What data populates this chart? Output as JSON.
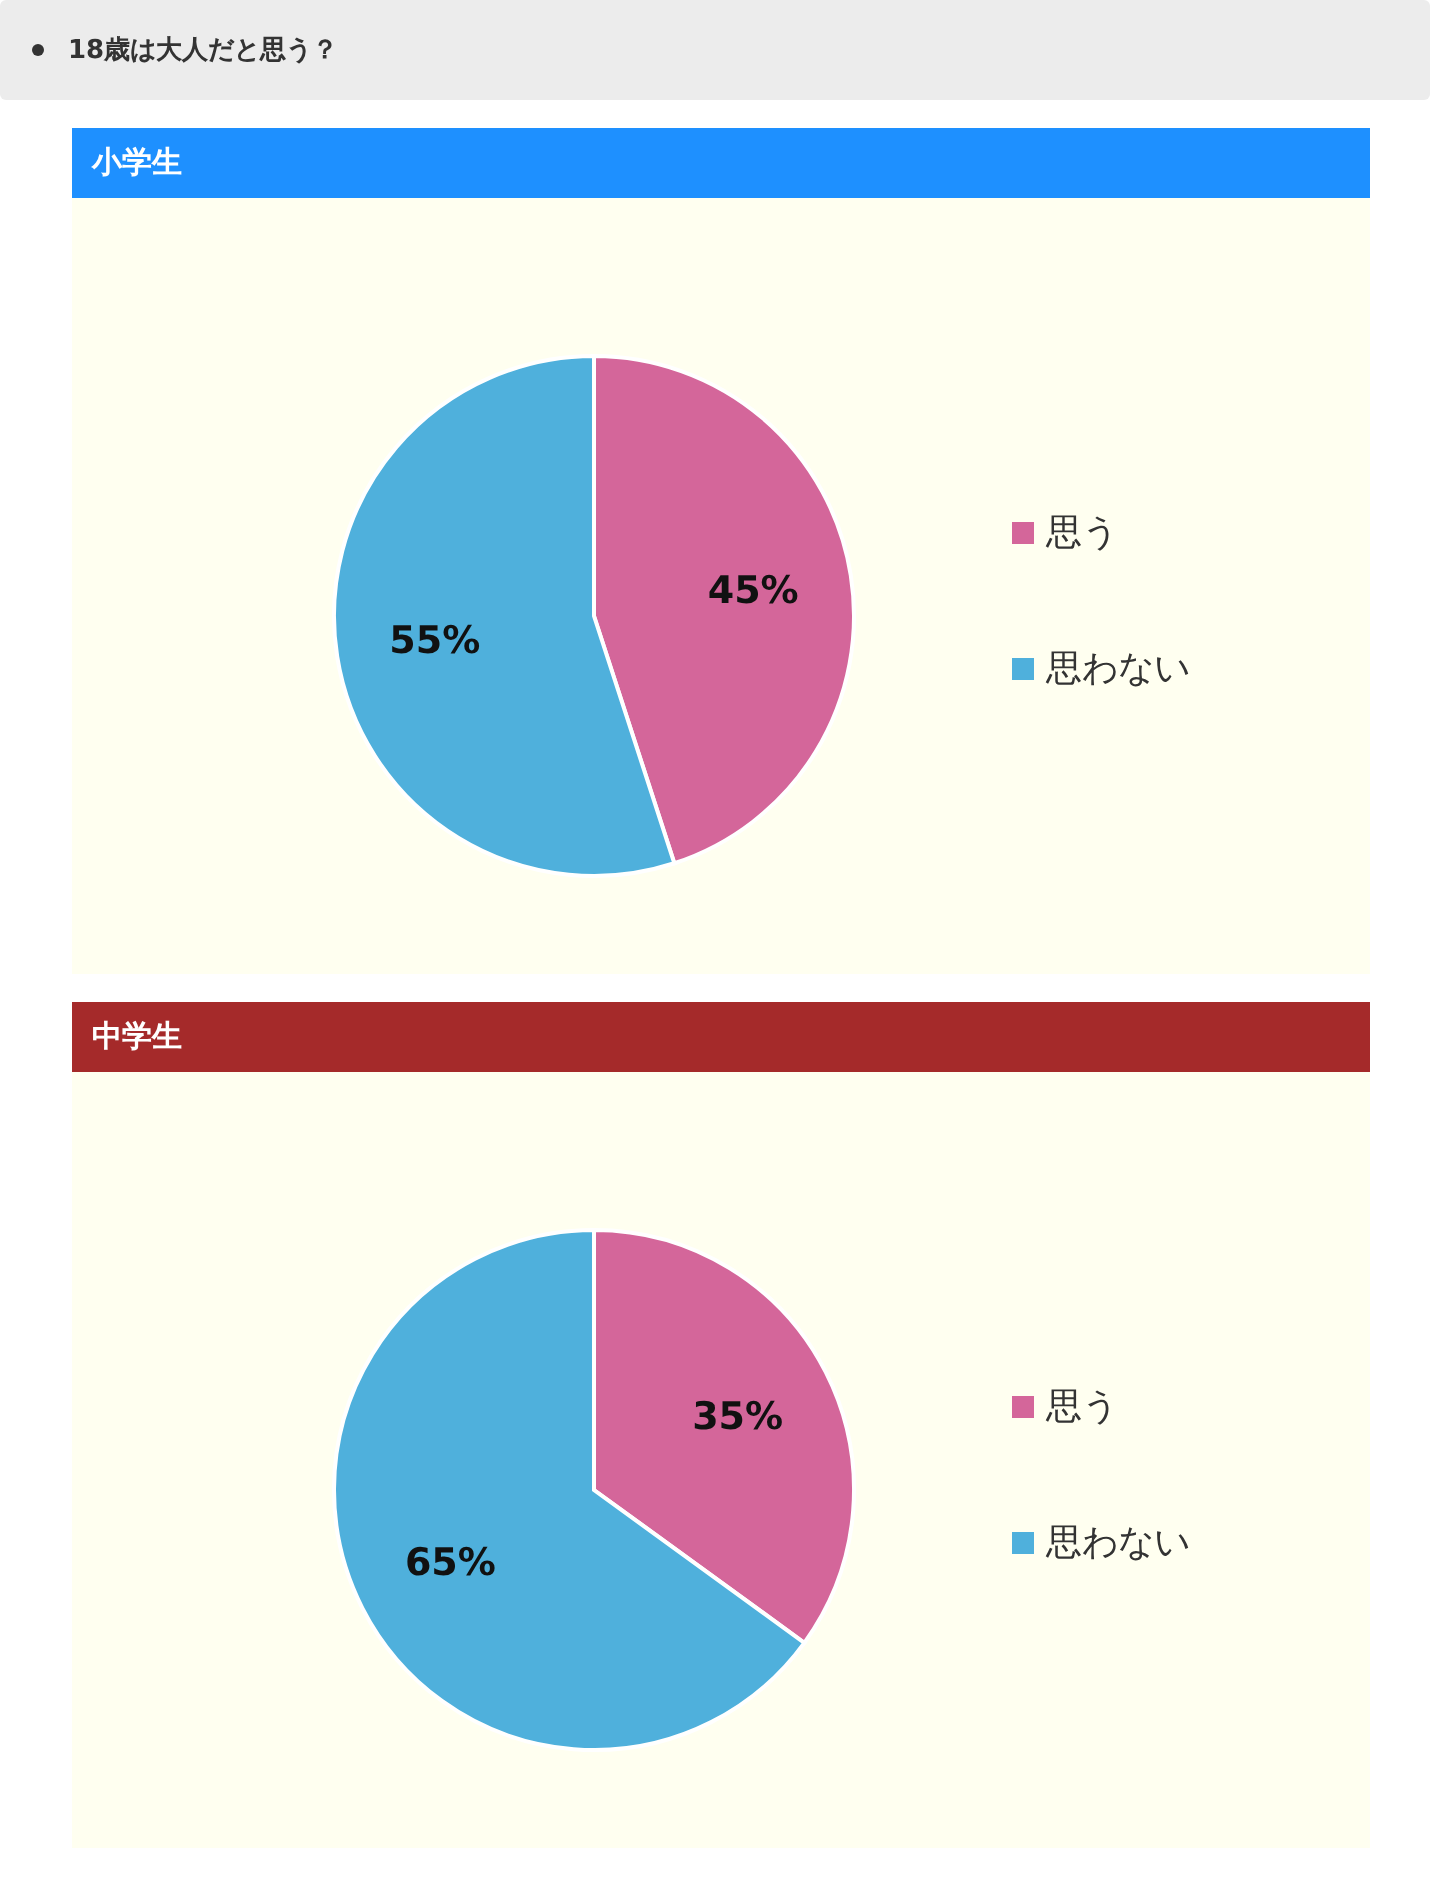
{
  "chart_data": [
    {
      "type": "pie",
      "title": "小学生",
      "annotations": [
        "18歳は大人だと思う？"
      ],
      "categories": [
        "思う",
        "思わない"
      ],
      "values": [
        45,
        55
      ],
      "colors": [
        "#d4669a",
        "#4fb0dc"
      ],
      "value_labels": [
        "45%",
        "55%"
      ],
      "legend": "right"
    },
    {
      "type": "pie",
      "title": "中学生",
      "categories": [
        "思う",
        "思わない"
      ],
      "values": [
        35,
        65
      ],
      "colors": [
        "#d4669a",
        "#4fb0dc"
      ],
      "value_labels": [
        "35%",
        "65%"
      ],
      "legend": "right"
    }
  ]
}
